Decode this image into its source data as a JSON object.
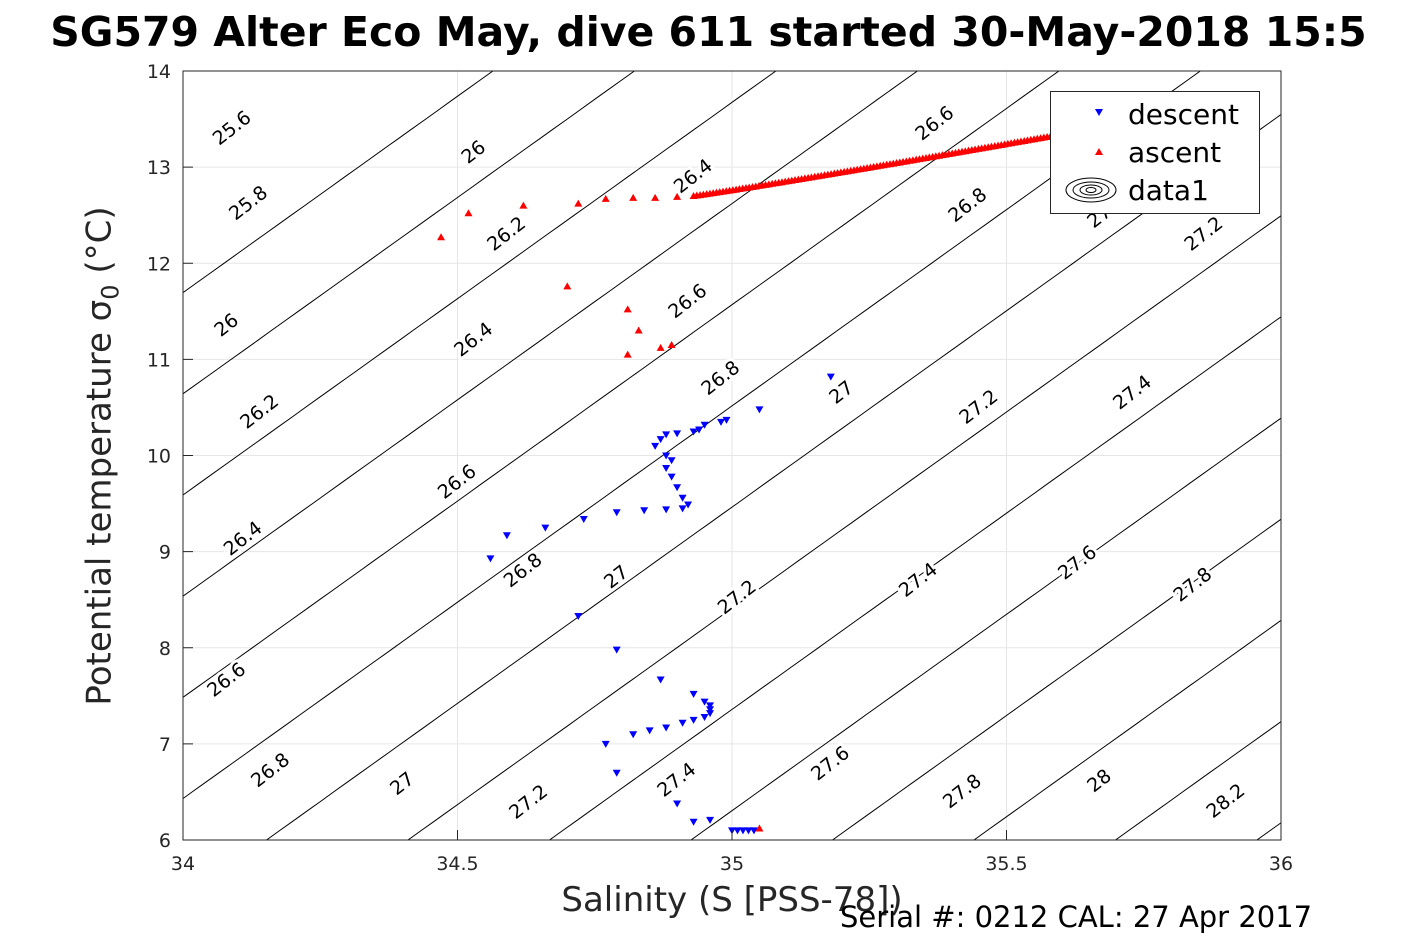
{
  "chart": {
    "title": "SG579 Alter Eco May, dive 611 started 30-May-2018 15:5",
    "xlabel": "Salinity (S [PSS-78])",
    "ylabel_main": "Potential temperature σ",
    "ylabel_sub": "0",
    "ylabel_unit": " (°C)",
    "footer": "Serial #: 0212  CAL: 27 Apr 2017"
  },
  "legend": {
    "entries": [
      {
        "label": "descent",
        "color": "#0000ff",
        "marker": "triangle-down"
      },
      {
        "label": "ascent",
        "color": "#ff0000",
        "marker": "triangle-up"
      },
      {
        "label": "data1",
        "color": "#000000",
        "marker": "contour"
      }
    ]
  },
  "chart_data": {
    "type": "scatter",
    "title": "SG579 Alter Eco May, dive 611 started 30-May-2018 15:5",
    "xlabel": "Salinity (S [PSS-78])",
    "ylabel": "Potential temperature σ0 (°C)",
    "xlim": [
      34,
      36
    ],
    "ylim": [
      6,
      14
    ],
    "xticks": [
      "34",
      "34.5",
      "35",
      "35.5",
      "36"
    ],
    "yticks": [
      "6",
      "7",
      "8",
      "9",
      "10",
      "11",
      "12",
      "13",
      "14"
    ],
    "grid": true,
    "legend_position": "top-right",
    "contours": {
      "name": "data1",
      "color": "#000000",
      "levels": [
        25.6,
        25.8,
        26.0,
        26.2,
        26.4,
        26.6,
        26.8,
        27.0,
        27.2,
        27.4,
        27.6,
        27.8,
        28.0,
        28.2
      ],
      "label_positions": [
        {
          "level": "25.6",
          "s": 34.09,
          "t": 13.4
        },
        {
          "level": "26",
          "s": 34.53,
          "t": 13.15
        },
        {
          "level": "26.4",
          "s": 34.93,
          "t": 12.9
        },
        {
          "level": "26.6",
          "s": 35.37,
          "t": 13.45
        },
        {
          "level": "25.8",
          "s": 34.12,
          "t": 12.62
        },
        {
          "level": "26.2",
          "s": 34.59,
          "t": 12.3
        },
        {
          "level": "26.8",
          "s": 35.43,
          "t": 12.6
        },
        {
          "level": "27",
          "s": 35.67,
          "t": 12.48
        },
        {
          "level": "27.2",
          "s": 35.86,
          "t": 12.3
        },
        {
          "level": "26",
          "s": 34.08,
          "t": 11.35
        },
        {
          "level": "26.6",
          "s": 34.92,
          "t": 11.6
        },
        {
          "level": "26.4",
          "s": 34.53,
          "t": 11.2
        },
        {
          "level": "26.8",
          "s": 34.98,
          "t": 10.8
        },
        {
          "level": "27",
          "s": 35.2,
          "t": 10.65
        },
        {
          "level": "26.2",
          "s": 34.14,
          "t": 10.45
        },
        {
          "level": "27.2",
          "s": 35.45,
          "t": 10.5
        },
        {
          "level": "27.4",
          "s": 35.73,
          "t": 10.65
        },
        {
          "level": "26.6",
          "s": 34.5,
          "t": 9.72
        },
        {
          "level": "26.4",
          "s": 34.11,
          "t": 9.13
        },
        {
          "level": "26.8",
          "s": 34.62,
          "t": 8.8
        },
        {
          "level": "27",
          "s": 34.79,
          "t": 8.73
        },
        {
          "level": "27.2",
          "s": 35.01,
          "t": 8.52
        },
        {
          "level": "27.4",
          "s": 35.34,
          "t": 8.7
        },
        {
          "level": "27.6",
          "s": 35.63,
          "t": 8.88
        },
        {
          "level": "27.8",
          "s": 35.84,
          "t": 8.65
        },
        {
          "level": "26.6",
          "s": 34.08,
          "t": 7.66
        },
        {
          "level": "26.8",
          "s": 34.16,
          "t": 6.72
        },
        {
          "level": "27",
          "s": 34.4,
          "t": 6.58
        },
        {
          "level": "27.2",
          "s": 34.63,
          "t": 6.39
        },
        {
          "level": "27.4",
          "s": 34.9,
          "t": 6.62
        },
        {
          "level": "27.6",
          "s": 35.18,
          "t": 6.79
        },
        {
          "level": "27.8",
          "s": 35.42,
          "t": 6.5
        },
        {
          "level": "28",
          "s": 35.67,
          "t": 6.61
        },
        {
          "level": "28.2",
          "s": 35.9,
          "t": 6.4
        }
      ]
    },
    "series": [
      {
        "name": "descent",
        "marker": "triangle-down",
        "color": "#0000ff",
        "points": [
          [
            35.18,
            10.82
          ],
          [
            35.05,
            10.48
          ],
          [
            34.99,
            10.37
          ],
          [
            34.98,
            10.35
          ],
          [
            34.95,
            10.32
          ],
          [
            34.94,
            10.27
          ],
          [
            34.93,
            10.25
          ],
          [
            34.9,
            10.23
          ],
          [
            34.88,
            10.22
          ],
          [
            34.87,
            10.17
          ],
          [
            34.86,
            10.1
          ],
          [
            34.88,
            10.0
          ],
          [
            34.89,
            9.95
          ],
          [
            34.88,
            9.87
          ],
          [
            34.89,
            9.78
          ],
          [
            34.9,
            9.67
          ],
          [
            34.91,
            9.56
          ],
          [
            34.92,
            9.49
          ],
          [
            34.91,
            9.45
          ],
          [
            34.88,
            9.44
          ],
          [
            34.84,
            9.43
          ],
          [
            34.79,
            9.41
          ],
          [
            34.73,
            9.34
          ],
          [
            34.66,
            9.25
          ],
          [
            34.59,
            9.17
          ],
          [
            34.56,
            8.93
          ],
          [
            34.72,
            8.33
          ],
          [
            34.79,
            7.98
          ],
          [
            34.87,
            7.67
          ],
          [
            34.93,
            7.52
          ],
          [
            34.95,
            7.44
          ],
          [
            34.96,
            7.4
          ],
          [
            34.96,
            7.36
          ],
          [
            34.96,
            7.32
          ],
          [
            34.95,
            7.28
          ],
          [
            34.93,
            7.25
          ],
          [
            34.91,
            7.22
          ],
          [
            34.88,
            7.17
          ],
          [
            34.85,
            7.14
          ],
          [
            34.82,
            7.1
          ],
          [
            34.77,
            7.0
          ],
          [
            34.79,
            6.7
          ],
          [
            34.9,
            6.38
          ],
          [
            34.93,
            6.19
          ],
          [
            34.96,
            6.21
          ],
          [
            35.0,
            6.1
          ],
          [
            35.01,
            6.1
          ],
          [
            35.02,
            6.1
          ],
          [
            35.03,
            6.1
          ],
          [
            35.04,
            6.1
          ]
        ]
      },
      {
        "name": "ascent",
        "marker": "triangle-up",
        "color": "#ff0000",
        "points": [
          [
            34.47,
            12.27
          ],
          [
            34.52,
            12.52
          ],
          [
            34.62,
            12.6
          ],
          [
            34.72,
            12.62
          ],
          [
            34.77,
            12.67
          ],
          [
            34.82,
            12.68
          ],
          [
            34.86,
            12.68
          ],
          [
            34.9,
            12.69
          ],
          [
            34.7,
            11.76
          ],
          [
            34.81,
            11.52
          ],
          [
            34.83,
            11.3
          ],
          [
            34.81,
            11.05
          ],
          [
            34.87,
            11.12
          ],
          [
            34.89,
            11.15
          ],
          [
            35.05,
            6.12
          ]
        ],
        "dense_segment": {
          "from": [
            34.93,
            12.7
          ],
          "to": [
            35.58,
            13.32
          ],
          "count": 110
        }
      }
    ]
  }
}
